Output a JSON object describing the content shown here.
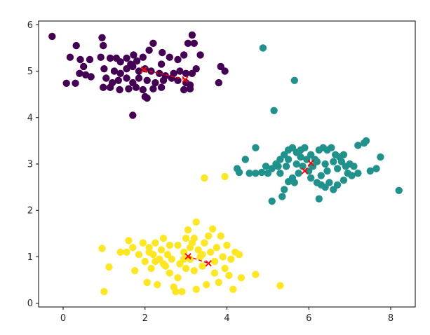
{
  "chart_data": {
    "type": "scatter",
    "title": "",
    "xlabel": "",
    "ylabel": "",
    "xlim": [
      -0.6,
      8.6
    ],
    "ylim": [
      -0.08,
      6.08
    ],
    "xticks": [
      0,
      2,
      4,
      6,
      8
    ],
    "yticks": [
      0,
      1,
      2,
      3,
      4,
      5,
      6
    ],
    "grid": false,
    "colors": {
      "cluster_0": "#440154",
      "cluster_1": "#21918c",
      "cluster_2": "#fde725",
      "centroid": "#ff0000"
    },
    "clusters": [
      {
        "color_key": "cluster_0",
        "points": [
          [
            -0.27,
            5.75
          ],
          [
            0.32,
            5.55
          ],
          [
            0.17,
            5.3
          ],
          [
            0.42,
            5.25
          ],
          [
            0.5,
            5.1
          ],
          [
            0.65,
            5.25
          ],
          [
            0.4,
            4.95
          ],
          [
            0.55,
            4.92
          ],
          [
            0.68,
            4.88
          ],
          [
            0.08,
            4.74
          ],
          [
            0.3,
            4.74
          ],
          [
            0.95,
            5.72
          ],
          [
            0.98,
            5.55
          ],
          [
            0.92,
            5.3
          ],
          [
            1.15,
            5.28
          ],
          [
            1.3,
            5.28
          ],
          [
            1.4,
            5.2
          ],
          [
            1.55,
            5.28
          ],
          [
            1.72,
            5.35
          ],
          [
            1.8,
            5.22
          ],
          [
            1.95,
            5.3
          ],
          [
            2.1,
            5.45
          ],
          [
            2.2,
            5.6
          ],
          [
            2.42,
            5.4
          ],
          [
            2.6,
            5.3
          ],
          [
            2.8,
            5.25
          ],
          [
            2.95,
            5.35
          ],
          [
            3.05,
            5.6
          ],
          [
            3.2,
            5.6
          ],
          [
            3.15,
            5.78
          ],
          [
            3.35,
            5.35
          ],
          [
            1.0,
            5.05
          ],
          [
            1.25,
            5.0
          ],
          [
            1.4,
            4.95
          ],
          [
            1.55,
            5.05
          ],
          [
            1.7,
            5.1
          ],
          [
            1.85,
            5.0
          ],
          [
            2.0,
            5.05
          ],
          [
            2.15,
            5.0
          ],
          [
            2.35,
            4.95
          ],
          [
            2.5,
            4.9
          ],
          [
            2.7,
            4.95
          ],
          [
            2.85,
            5.0
          ],
          [
            3.0,
            4.95
          ],
          [
            3.15,
            4.95
          ],
          [
            3.25,
            5.05
          ],
          [
            1.05,
            4.85
          ],
          [
            1.2,
            4.75
          ],
          [
            1.35,
            4.8
          ],
          [
            1.55,
            4.85
          ],
          [
            1.7,
            4.75
          ],
          [
            1.85,
            4.85
          ],
          [
            2.05,
            4.8
          ],
          [
            2.25,
            4.75
          ],
          [
            2.45,
            4.8
          ],
          [
            2.65,
            4.85
          ],
          [
            2.8,
            4.8
          ],
          [
            3.0,
            4.75
          ],
          [
            3.1,
            4.7
          ],
          [
            0.98,
            4.65
          ],
          [
            1.15,
            4.65
          ],
          [
            1.38,
            4.6
          ],
          [
            1.6,
            4.62
          ],
          [
            1.78,
            4.65
          ],
          [
            1.95,
            4.6
          ],
          [
            2.2,
            4.62
          ],
          [
            2.4,
            4.65
          ],
          [
            2.95,
            4.6
          ],
          [
            3.1,
            4.62
          ],
          [
            2.0,
            4.45
          ],
          [
            2.05,
            4.42
          ],
          [
            1.7,
            4.05
          ],
          [
            3.85,
            5.1
          ],
          [
            3.95,
            5.0
          ],
          [
            3.8,
            4.75
          ],
          [
            2.4,
            5.15
          ],
          [
            1.65,
            5.15
          ]
        ]
      },
      {
        "color_key": "cluster_1",
        "points": [
          [
            4.88,
            5.5
          ],
          [
            5.65,
            4.8
          ],
          [
            5.15,
            4.15
          ],
          [
            4.7,
            3.35
          ],
          [
            4.45,
            3.1
          ],
          [
            4.25,
            2.9
          ],
          [
            4.3,
            2.82
          ],
          [
            4.55,
            2.8
          ],
          [
            4.7,
            2.8
          ],
          [
            4.85,
            2.82
          ],
          [
            5.0,
            2.8
          ],
          [
            5.1,
            2.9
          ],
          [
            5.2,
            3.0
          ],
          [
            5.3,
            3.1
          ],
          [
            5.4,
            3.2
          ],
          [
            5.5,
            3.3
          ],
          [
            5.6,
            3.35
          ],
          [
            5.7,
            3.25
          ],
          [
            5.8,
            3.3
          ],
          [
            5.9,
            3.35
          ],
          [
            6.05,
            3.2
          ],
          [
            6.15,
            3.1
          ],
          [
            6.25,
            3.3
          ],
          [
            6.35,
            3.35
          ],
          [
            6.45,
            3.3
          ],
          [
            6.55,
            3.35
          ],
          [
            6.65,
            3.2
          ],
          [
            6.75,
            3.15
          ],
          [
            6.85,
            3.2
          ],
          [
            7.0,
            3.0
          ],
          [
            7.1,
            2.95
          ],
          [
            7.2,
            2.8
          ],
          [
            7.35,
            3.45
          ],
          [
            7.4,
            3.5
          ],
          [
            7.5,
            2.85
          ],
          [
            7.65,
            2.9
          ],
          [
            7.75,
            3.15
          ],
          [
            8.2,
            2.43
          ],
          [
            5.1,
            2.2
          ],
          [
            5.35,
            2.3
          ],
          [
            5.4,
            2.45
          ],
          [
            5.5,
            2.62
          ],
          [
            5.6,
            2.7
          ],
          [
            5.75,
            2.8
          ],
          [
            5.85,
            2.95
          ],
          [
            6.0,
            2.85
          ],
          [
            6.05,
            2.7
          ],
          [
            6.2,
            2.6
          ],
          [
            6.3,
            2.55
          ],
          [
            6.4,
            2.5
          ],
          [
            6.5,
            2.6
          ],
          [
            6.6,
            2.45
          ],
          [
            6.7,
            2.55
          ],
          [
            6.85,
            2.65
          ],
          [
            6.95,
            2.8
          ],
          [
            6.25,
            2.25
          ],
          [
            5.25,
            2.95
          ],
          [
            5.45,
            2.95
          ],
          [
            5.7,
            3.0
          ],
          [
            5.95,
            3.1
          ],
          [
            6.2,
            3.05
          ],
          [
            6.4,
            3.0
          ],
          [
            6.6,
            3.05
          ],
          [
            6.8,
            3.05
          ],
          [
            7.2,
            3.4
          ],
          [
            4.95,
            2.95
          ],
          [
            5.3,
            2.8
          ],
          [
            5.65,
            2.6
          ],
          [
            6.1,
            2.95
          ],
          [
            6.45,
            2.85
          ],
          [
            6.7,
            2.9
          ],
          [
            5.5,
            3.1
          ],
          [
            7.05,
            2.75
          ],
          [
            6.9,
            2.95
          ],
          [
            5.8,
            3.15
          ],
          [
            6.3,
            2.75
          ]
        ]
      },
      {
        "color_key": "cluster_2",
        "points": [
          [
            3.45,
            2.7
          ],
          [
            3.95,
            2.73
          ],
          [
            0.95,
            1.18
          ],
          [
            1.0,
            0.25
          ],
          [
            1.12,
            0.78
          ],
          [
            1.4,
            1.1
          ],
          [
            1.55,
            1.1
          ],
          [
            1.6,
            1.35
          ],
          [
            1.7,
            1.2
          ],
          [
            1.75,
            0.7
          ],
          [
            1.85,
            1.05
          ],
          [
            1.95,
            1.3
          ],
          [
            2.0,
            0.9
          ],
          [
            2.05,
            0.45
          ],
          [
            2.1,
            1.2
          ],
          [
            2.15,
            0.75
          ],
          [
            2.2,
            1.05
          ],
          [
            2.25,
            1.3
          ],
          [
            2.3,
            0.4
          ],
          [
            2.35,
            0.95
          ],
          [
            2.4,
            1.15
          ],
          [
            2.45,
            1.4
          ],
          [
            2.5,
            0.8
          ],
          [
            2.55,
            1.05
          ],
          [
            2.6,
            0.65
          ],
          [
            2.65,
            0.95
          ],
          [
            2.7,
            0.35
          ],
          [
            2.75,
            0.25
          ],
          [
            2.8,
            1.25
          ],
          [
            2.85,
            0.85
          ],
          [
            2.9,
            0.25
          ],
          [
            2.95,
            1.1
          ],
          [
            3.0,
            1.4
          ],
          [
            3.05,
            1.58
          ],
          [
            3.1,
            0.95
          ],
          [
            3.15,
            1.3
          ],
          [
            3.2,
            0.7
          ],
          [
            3.25,
            1.75
          ],
          [
            3.25,
            0.3
          ],
          [
            3.3,
            1.15
          ],
          [
            3.35,
            1.0
          ],
          [
            3.4,
            0.8
          ],
          [
            3.45,
            1.3
          ],
          [
            3.5,
            0.4
          ],
          [
            3.55,
            1.45
          ],
          [
            3.6,
            1.1
          ],
          [
            3.65,
            1.6
          ],
          [
            3.7,
            0.9
          ],
          [
            3.75,
            1.2
          ],
          [
            3.8,
            0.45
          ],
          [
            3.85,
            1.45
          ],
          [
            3.9,
            1.0
          ],
          [
            3.95,
            0.75
          ],
          [
            4.0,
            1.25
          ],
          [
            4.05,
            0.6
          ],
          [
            4.1,
            0.95
          ],
          [
            4.15,
            0.3
          ],
          [
            4.2,
            1.1
          ],
          [
            4.3,
            1.05
          ],
          [
            4.35,
            0.55
          ],
          [
            4.7,
            0.62
          ],
          [
            5.3,
            0.38
          ],
          [
            2.1,
            1.1
          ],
          [
            2.8,
            0.55
          ],
          [
            3.1,
            1.2
          ],
          [
            2.6,
            1.25
          ],
          [
            3.4,
            1.05
          ],
          [
            3.0,
            0.75
          ],
          [
            2.25,
            0.9
          ],
          [
            3.7,
            0.65
          ],
          [
            3.2,
            1.4
          ],
          [
            2.95,
            0.95
          ],
          [
            2.45,
            0.85
          ]
        ]
      }
    ],
    "centroid_paths": [
      {
        "points": [
          [
            1.97,
            5.03
          ],
          [
            2.98,
            4.82
          ]
        ]
      },
      {
        "points": [
          [
            5.9,
            2.85
          ],
          [
            6.05,
            3.02
          ]
        ]
      },
      {
        "points": [
          [
            3.05,
            1.01
          ],
          [
            3.55,
            0.86
          ]
        ]
      }
    ]
  }
}
